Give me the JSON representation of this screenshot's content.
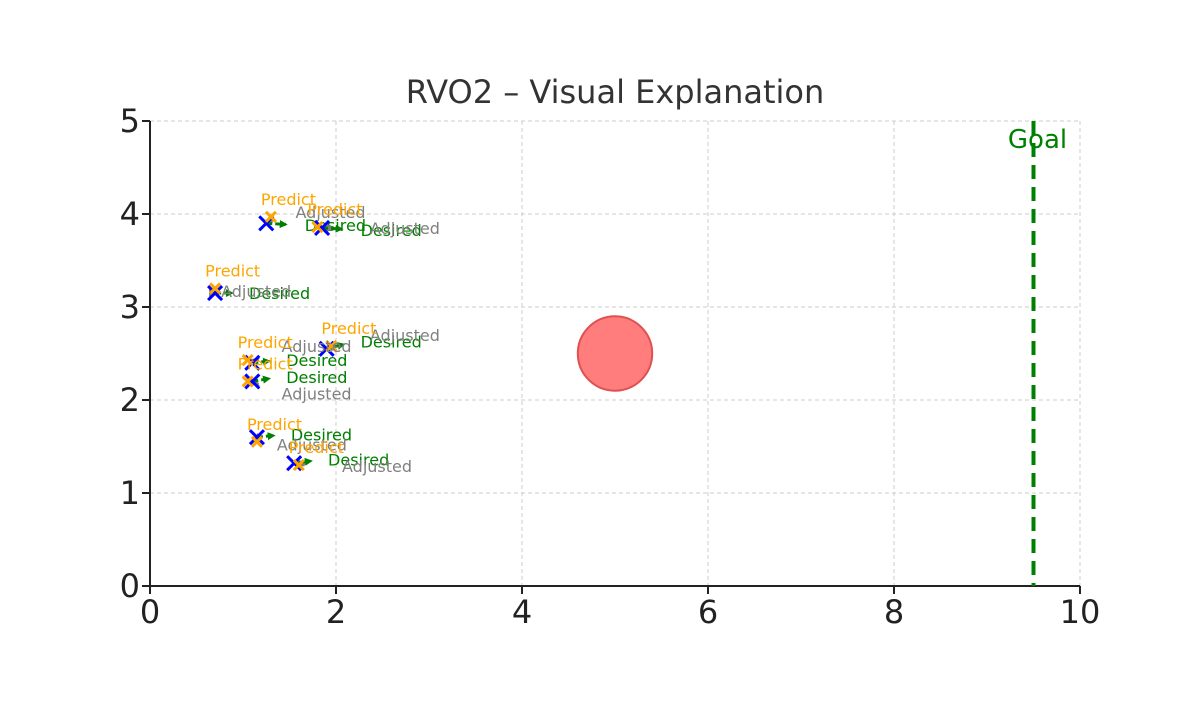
{
  "chart_data": {
    "type": "scatter",
    "title": "RVO2 – Visual Explanation",
    "xlabel": "",
    "ylabel": "",
    "xlim": [
      0,
      10
    ],
    "ylim": [
      0,
      5
    ],
    "x_ticks": [
      "0",
      "2",
      "4",
      "6",
      "8",
      "10"
    ],
    "y_ticks": [
      "0",
      "1",
      "2",
      "3",
      "4",
      "5"
    ],
    "grid": true,
    "goal": {
      "x": 9.5,
      "label": "Goal",
      "color": "#008000"
    },
    "obstacle": {
      "x": 5.0,
      "y": 2.5,
      "radius": 0.4,
      "color": "#ff6666"
    },
    "agents": [
      {
        "x": 1.25,
        "y": 3.9,
        "desired": [
          1.6,
          3.88
        ],
        "adjusted": [
          1.5,
          4.0
        ],
        "predicted": [
          1.3,
          3.97
        ]
      },
      {
        "x": 1.85,
        "y": 3.85,
        "desired": [
          2.2,
          3.83
        ],
        "adjusted": [
          2.3,
          3.83
        ],
        "predicted": [
          1.8,
          3.86
        ]
      },
      {
        "x": 0.7,
        "y": 3.15,
        "desired": [
          1.0,
          3.15
        ],
        "adjusted": [
          0.7,
          3.15
        ],
        "predicted": [
          0.7,
          3.2
        ]
      },
      {
        "x": 1.9,
        "y": 2.55,
        "desired": [
          2.2,
          2.63
        ],
        "adjusted": [
          2.3,
          2.68
        ],
        "predicted": [
          1.95,
          2.58
        ]
      },
      {
        "x": 1.1,
        "y": 2.4,
        "desired": [
          1.4,
          2.43
        ],
        "adjusted": [
          1.35,
          2.56
        ],
        "predicted": [
          1.05,
          2.43
        ]
      },
      {
        "x": 1.1,
        "y": 2.2,
        "desired": [
          1.4,
          2.25
        ],
        "adjusted": [
          1.35,
          2.05
        ],
        "predicted": [
          1.05,
          2.2
        ]
      },
      {
        "x": 1.15,
        "y": 1.6,
        "desired": [
          1.45,
          1.63
        ],
        "adjusted": [
          1.3,
          1.5
        ],
        "predicted": [
          1.15,
          1.55
        ]
      },
      {
        "x": 1.55,
        "y": 1.32,
        "desired": [
          1.85,
          1.36
        ],
        "adjusted": [
          2.0,
          1.27
        ],
        "predicted": [
          1.6,
          1.3
        ]
      }
    ],
    "labels": {
      "desired": "Desired",
      "adjusted": "Adjusted",
      "predicted": "Predict"
    },
    "colors": {
      "agent": "#0000ff",
      "predicted": "#ffa500",
      "desired": "#008000",
      "adjusted": "#808080",
      "grid": "#cccccc",
      "axis": "#222222",
      "title": "#333333"
    }
  }
}
